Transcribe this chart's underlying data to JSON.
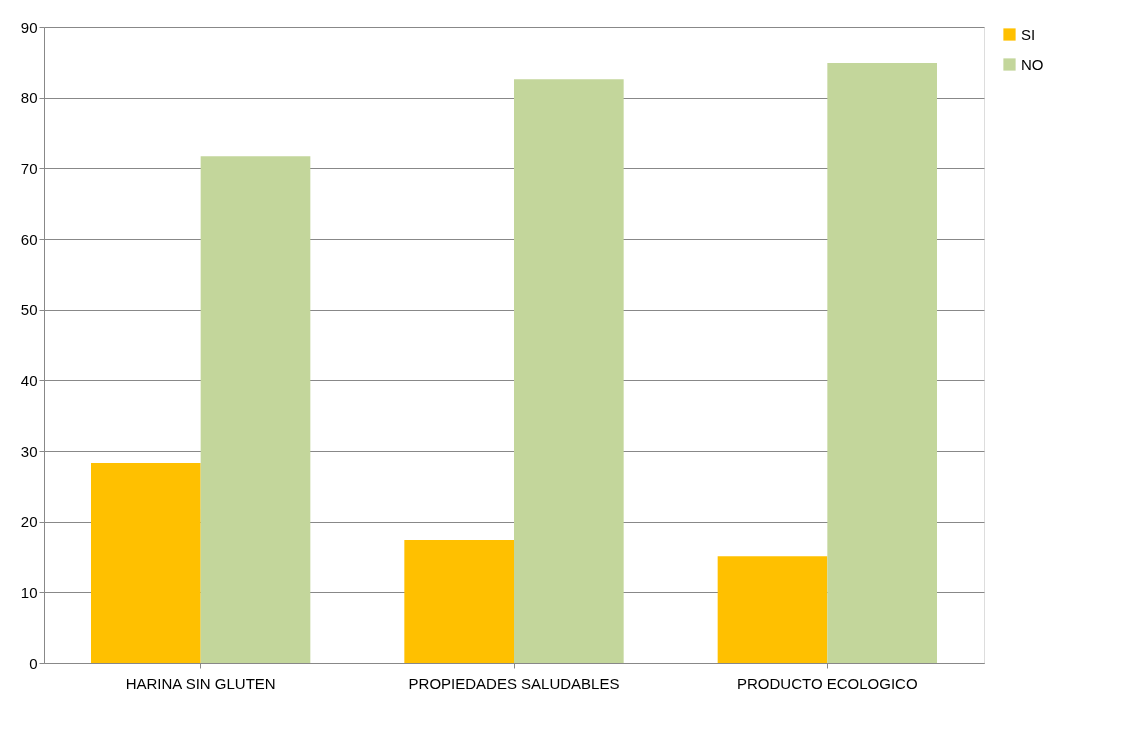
{
  "chart_data": {
    "type": "bar",
    "categories": [
      "HARINA SIN GLUTEN",
      "PROPIEDADES SALUDABLES",
      "PRODUCTO ECOLOGICO"
    ],
    "series": [
      {
        "name": "SI",
        "color": "#ffc000",
        "values": [
          28.3,
          17.4,
          15.1
        ]
      },
      {
        "name": "NO",
        "color": "#c3d69b",
        "values": [
          71.7,
          82.6,
          84.9
        ]
      }
    ],
    "ylim": [
      0,
      90
    ],
    "yticks": [
      0,
      10,
      20,
      30,
      40,
      50,
      60,
      70,
      80,
      90
    ],
    "grid": "y",
    "legend": "right"
  }
}
